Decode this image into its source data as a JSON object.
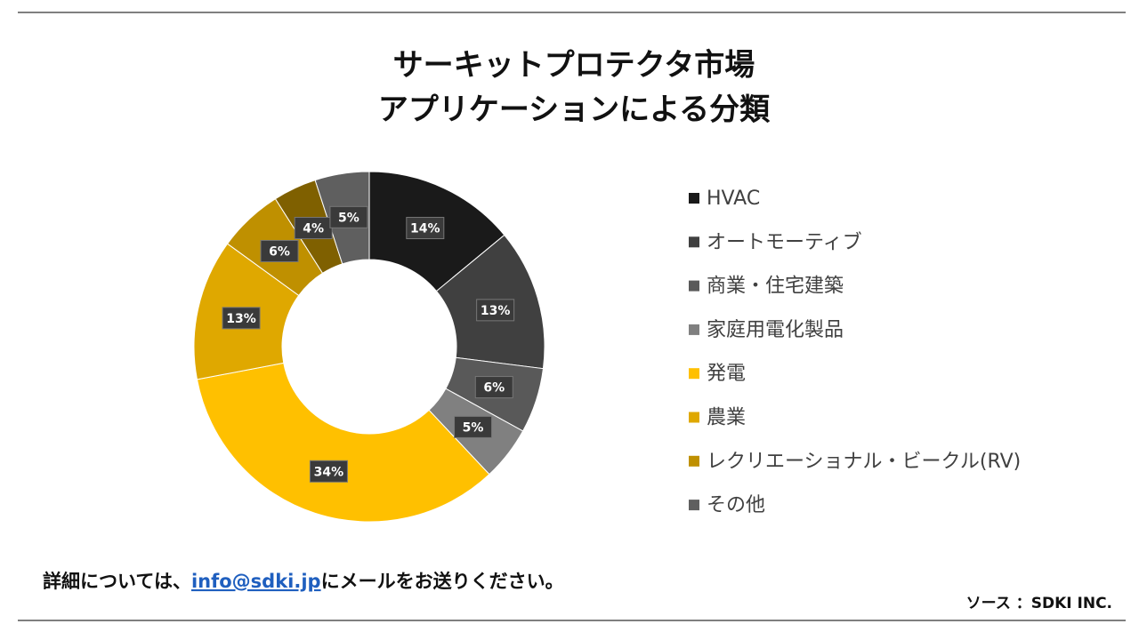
{
  "chart_data": {
    "type": "donut",
    "title": "サーキットプロテクタ市場",
    "subtitle": "アプリケーションによる分類",
    "categories": [
      "HVAC",
      "オートモーティブ",
      "商業・住宅建築",
      "家庭用電化製品",
      "発電",
      "農業",
      "レクリエーショナル・ビークル(RV)",
      null,
      "その他"
    ],
    "values": [
      14,
      13,
      6,
      5,
      34,
      13,
      6,
      4,
      5
    ],
    "value_labels": [
      "14%",
      "13%",
      "6%",
      "5%",
      "34%",
      "13%",
      "6%",
      "4%",
      "5%"
    ],
    "colors": [
      "#1a1a1a",
      "#404040",
      "#595959",
      "#808080",
      "#ffc000",
      "#dfa800",
      "#bf9000",
      "#7f6000",
      "#5f5f5f"
    ],
    "legend": "right"
  },
  "footer": {
    "text_before": "詳細については、",
    "link": "info@sdki.jp",
    "text_after": "にメールをお送りください。",
    "source": "ソース ：SDKI INC."
  }
}
